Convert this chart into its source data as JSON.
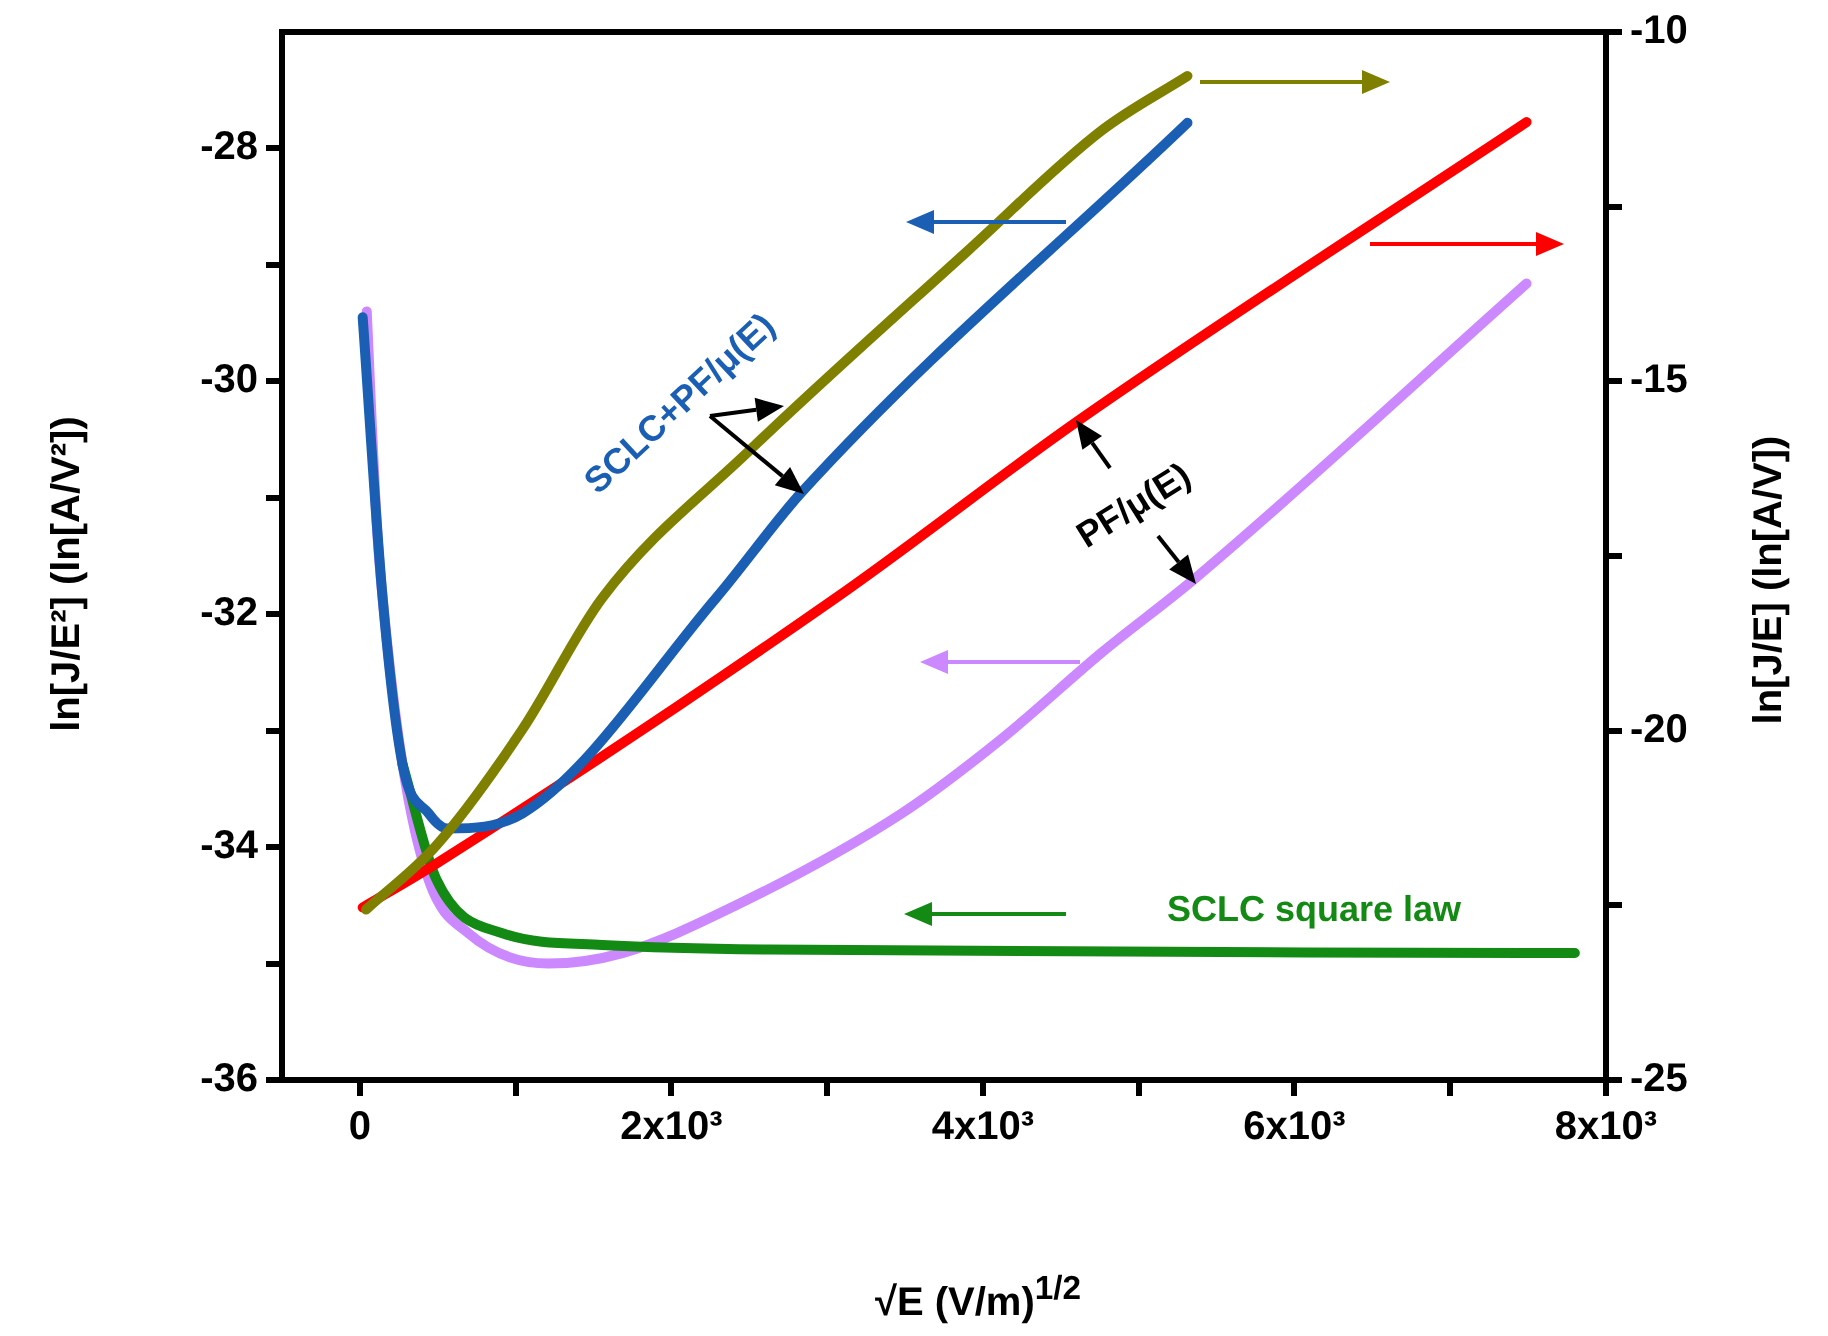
{
  "chart_data": {
    "type": "line",
    "xlabel": "√E  (V/m)$^{1/2}$",
    "ylabel": "ln[J/E²]  (ln[A/V²])",
    "y2label": "ln[J/E]   (ln[A/V])",
    "annotations": [
      "SCLC+PF/μ(E)",
      "PF/μ(E)",
      "SCLC square law"
    ],
    "xlim": [
      -500,
      8000
    ],
    "xticks": [
      0,
      {
        "value": 1000,
        "label": null
      },
      {
        "value": 2000,
        "label": "2x10³"
      },
      {
        "value": 3000,
        "label": null
      },
      {
        "value": 4000,
        "label": "4x10³"
      },
      {
        "value": 5000,
        "label": null
      },
      {
        "value": 6000,
        "label": "6x10³"
      },
      {
        "value": 7000,
        "label": null
      },
      {
        "value": 8000,
        "label": "8x10³"
      }
    ],
    "ylim": [
      -36,
      -27
    ],
    "yticks": [
      -36,
      {
        "value": -35,
        "label": null
      },
      -34,
      {
        "value": -33,
        "label": null
      },
      -32,
      {
        "value": -31,
        "label": null
      },
      -30,
      {
        "value": -29,
        "label": null
      },
      -28
    ],
    "y2lim": [
      -25,
      -10
    ],
    "y2ticks": [
      -25,
      {
        "value": -22.5,
        "label": null
      },
      -20,
      {
        "value": -17.5,
        "label": null
      },
      -15,
      {
        "value": -12.5,
        "label": null
      },
      -10
    ],
    "legend": false,
    "marker": "none",
    "series": [
      {
        "color": "#808000",
        "axis": "y2",
        "x": [
          40,
          492,
          1044,
          1556,
          2492,
          3903,
          4762,
          5313
        ],
        "values": [
          -22.56,
          -21.64,
          -19.98,
          -18.1,
          -16.01,
          -13.13,
          -11.41,
          -10.63
        ]
      },
      {
        "color": "#1a5fb4",
        "x": [
          18,
          146,
          274,
          441,
          559,
          1044,
          2287,
          2838,
          5313
        ],
        "values": [
          -29.45,
          -31.86,
          -33.29,
          -33.71,
          -33.84,
          -33.71,
          -31.86,
          -30.95,
          -27.78
        ]
      },
      {
        "color": "#ff0000",
        "axis": "y2",
        "x": [
          18,
          492,
          3056,
          4608,
          7490
        ],
        "values": [
          -22.53,
          -21.9,
          -18.1,
          -15.57,
          -11.29
        ]
      },
      {
        "color": "#138a13",
        "x": [
          274,
          492,
          915,
          1556,
          2621,
          7800
        ],
        "values": [
          -33.29,
          -34.28,
          -34.74,
          -34.84,
          -34.88,
          -34.91
        ]
      },
      {
        "color": "#cc88ff",
        "x": [
          44,
          108,
          146,
          274,
          441,
          697,
          1210,
          1685,
          2415,
          3479,
          4120,
          4762,
          5364,
          7490
        ],
        "values": [
          -29.4,
          -31.22,
          -31.86,
          -33.29,
          -34.28,
          -34.74,
          -35.0,
          -34.91,
          -34.5,
          -33.71,
          -33.07,
          -32.33,
          -31.69,
          -29.16
        ]
      }
    ]
  }
}
